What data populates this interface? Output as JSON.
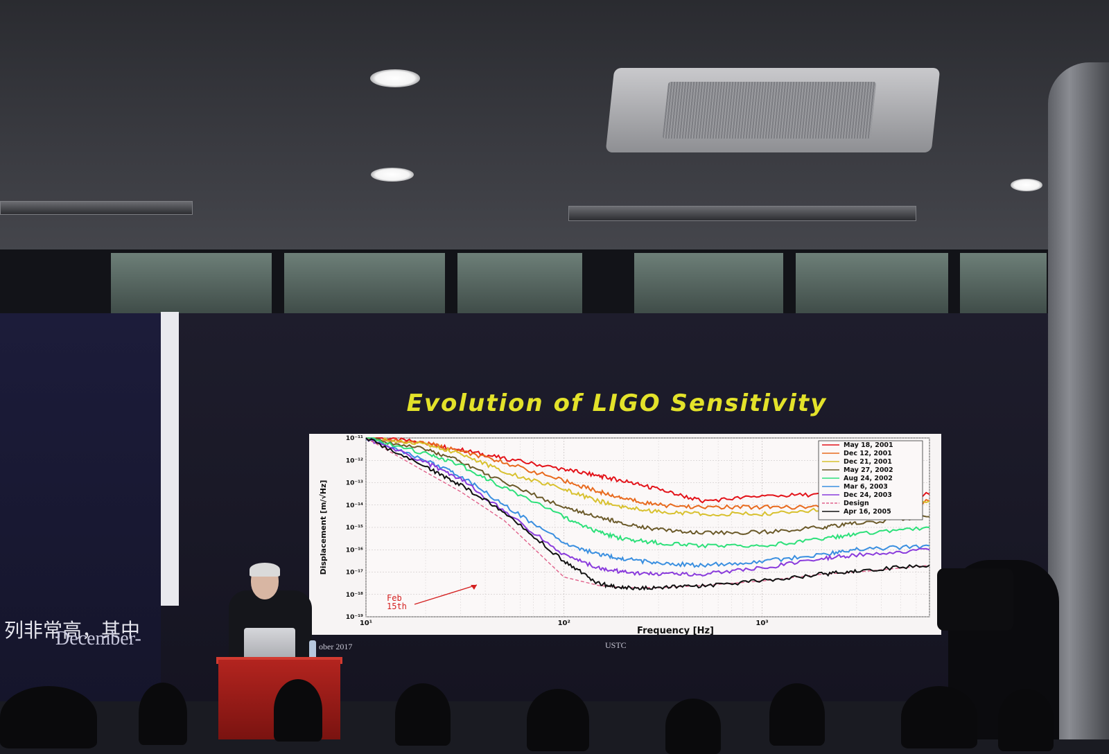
{
  "scene": {
    "ceiling": {
      "light_color": "#ffffff"
    },
    "screen_bg": "#1b1a28"
  },
  "slide": {
    "title": "Evolution of LIGO Sensitivity",
    "title_color": "#e3e22a",
    "footer_left": "ober 2017",
    "footer_right": "USTC"
  },
  "left_panel": {
    "caption_chinese": "列非常高，其中",
    "caption_english": "December-"
  },
  "chart_data": {
    "type": "line",
    "log_x": true,
    "log_y": true,
    "xlabel": "Frequency [Hz]",
    "ylabel": "Displacement [m/√Hz]",
    "xlim": [
      10,
      7000
    ],
    "ylim": [
      1e-19,
      1e-11
    ],
    "x_ticks": [
      "10¹",
      "10²",
      "10³"
    ],
    "y_ticks": [
      "10⁻¹¹",
      "10⁻¹²",
      "10⁻¹³",
      "10⁻¹⁴",
      "10⁻¹⁵",
      "10⁻¹⁶",
      "10⁻¹⁷",
      "10⁻¹⁸",
      "10⁻¹⁹"
    ],
    "grid": true,
    "legend_position": "top-right",
    "annotation": {
      "text_line1": "Feb",
      "text_line2": "15th"
    },
    "series": [
      {
        "name": "May 18, 2001",
        "color": "#e3131a",
        "x": [
          10,
          20,
          30,
          50,
          100,
          150,
          200,
          300,
          500,
          1000,
          2000,
          3000,
          7000
        ],
        "y": [
          1.2e-11,
          6e-12,
          3e-12,
          1.2e-12,
          4e-13,
          2e-13,
          1.2e-13,
          5e-14,
          1.5e-14,
          2.5e-14,
          3e-14,
          3e-14,
          3e-14
        ]
      },
      {
        "name": "Dec 12, 2001",
        "color": "#e86a1e",
        "x": [
          10,
          20,
          30,
          50,
          100,
          150,
          200,
          300,
          500,
          1000,
          2000,
          3000,
          7000
        ],
        "y": [
          1e-11,
          6e-12,
          2.5e-12,
          8e-13,
          1.2e-13,
          4e-14,
          2e-14,
          1e-14,
          8e-15,
          8e-15,
          8e-15,
          8e-15,
          1.5e-14
        ]
      },
      {
        "name": "Dec 21, 2001",
        "color": "#d8c12f",
        "x": [
          10,
          20,
          30,
          50,
          100,
          150,
          200,
          300,
          500,
          1000,
          2000,
          3000,
          7000
        ],
        "y": [
          1e-11,
          5e-12,
          2e-12,
          3e-13,
          5e-14,
          1.5e-14,
          8e-15,
          5e-15,
          4e-15,
          4e-15,
          6e-15,
          8e-15,
          1.5e-14
        ]
      },
      {
        "name": "May 27, 2002",
        "color": "#6b5a2a",
        "x": [
          10,
          20,
          30,
          50,
          100,
          150,
          200,
          300,
          500,
          1000,
          2000,
          3000,
          7000
        ],
        "y": [
          1e-11,
          3e-12,
          9e-13,
          1e-13,
          8e-15,
          3e-15,
          1.5e-15,
          8e-16,
          6e-16,
          6e-16,
          1e-15,
          1.5e-15,
          3e-15
        ]
      },
      {
        "name": "Aug 24, 2002",
        "color": "#2de07a",
        "x": [
          10,
          20,
          30,
          50,
          100,
          150,
          200,
          300,
          500,
          1000,
          2000,
          3000,
          7000
        ],
        "y": [
          1e-11,
          2e-12,
          6e-13,
          6e-14,
          3e-15,
          6e-16,
          3e-16,
          2e-16,
          1.5e-16,
          1.5e-16,
          3e-16,
          5e-16,
          1e-15
        ]
      },
      {
        "name": "Mar  6, 2003",
        "color": "#3a8fe0",
        "x": [
          10,
          20,
          30,
          50,
          100,
          150,
          200,
          300,
          500,
          1000,
          2000,
          3000,
          7000
        ],
        "y": [
          1e-11,
          1e-12,
          2e-13,
          1e-14,
          2e-16,
          6e-17,
          4e-17,
          2.5e-17,
          2e-17,
          3e-17,
          6e-17,
          1e-16,
          1.5e-16
        ]
      },
      {
        "name": "Dec 24, 2003",
        "color": "#8a3bdc",
        "x": [
          10,
          20,
          30,
          50,
          100,
          150,
          200,
          300,
          500,
          1000,
          2000,
          3000,
          7000
        ],
        "y": [
          1e-11,
          8e-13,
          1.5e-13,
          5e-15,
          6e-17,
          1.5e-17,
          1e-17,
          8e-18,
          8e-18,
          1.5e-17,
          4e-17,
          6e-17,
          1e-16
        ]
      },
      {
        "name": "Design",
        "color": "#e0608a",
        "dashed": true,
        "x": [
          10,
          20,
          30,
          50,
          100,
          150,
          200,
          300,
          500,
          1000,
          2000,
          3000,
          7000
        ],
        "y": [
          1e-11,
          3e-13,
          4e-14,
          2e-15,
          6e-18,
          2.5e-18,
          2e-18,
          2e-18,
          2.5e-18,
          4e-18,
          8e-18,
          1e-17,
          2e-17
        ]
      },
      {
        "name": "Apr 16, 2005",
        "color": "#111111",
        "x": [
          10,
          20,
          30,
          50,
          100,
          150,
          200,
          300,
          500,
          1000,
          2000,
          3000,
          7000
        ],
        "y": [
          1e-11,
          5e-13,
          8e-14,
          5e-15,
          3e-17,
          3e-18,
          2e-18,
          2e-18,
          2.5e-18,
          4e-18,
          8e-18,
          1.2e-17,
          2e-17
        ]
      }
    ]
  }
}
